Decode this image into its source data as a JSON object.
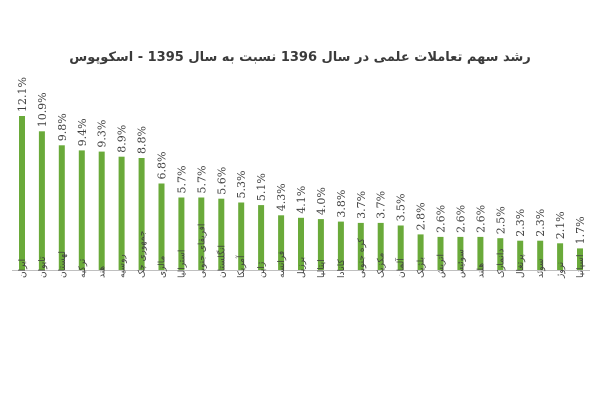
{
  "chart_data": {
    "type": "bar",
    "title": "رشد سهم تعاملات علمی در سال 1396 نسبت به سال 1395 - اسکوپوس",
    "xlabel": "",
    "ylabel": "",
    "ylim": [
      0,
      13.5
    ],
    "grid": false,
    "legend": "none",
    "bar_color": "#6aaa3a",
    "axis_color": "#bfbfbf",
    "label_color": "#404040",
    "value_suffix": "%",
    "categories": [
      "ایران",
      "تایوان",
      "لهستان",
      "ترکیه",
      "هند",
      "روسیه",
      "جمهوری چک",
      "مالزی",
      "استرالیا",
      "افریقای جنوبی",
      "انگلستان",
      "آمریکا",
      "ژاپن",
      "فرانسه",
      "برزیل",
      "ایتالیا",
      "کانادا",
      "کره جنوبی",
      "مکزیک",
      "آلمان",
      "بلژیک",
      "اتریش",
      "سوئیس",
      "هلند",
      "دانمارک",
      "پرتغال",
      "سوئد",
      "نروژ",
      "اسپانیا"
    ],
    "values": [
      12.1,
      10.9,
      9.8,
      9.4,
      9.3,
      8.9,
      8.8,
      6.8,
      5.7,
      5.7,
      5.6,
      5.3,
      5.1,
      4.3,
      4.1,
      4.0,
      3.8,
      3.7,
      3.7,
      3.5,
      2.8,
      2.6,
      2.6,
      2.6,
      2.5,
      2.3,
      2.3,
      2.1,
      1.7
    ],
    "data_labels": [
      "12.1%",
      "10.9%",
      "9.8%",
      "9.4%",
      "9.3%",
      "8.9%",
      "8.8%",
      "6.8%",
      "5.7%",
      "5.7%",
      "5.6%",
      "5.3%",
      "5.1%",
      "4.3%",
      "4.1%",
      "4.0%",
      "3.8%",
      "3.7%",
      "3.7%",
      "3.5%",
      "2.8%",
      "2.6%",
      "2.6%",
      "2.6%",
      "2.5%",
      "2.3%",
      "2.3%",
      "2.1%",
      "1.7%"
    ]
  }
}
